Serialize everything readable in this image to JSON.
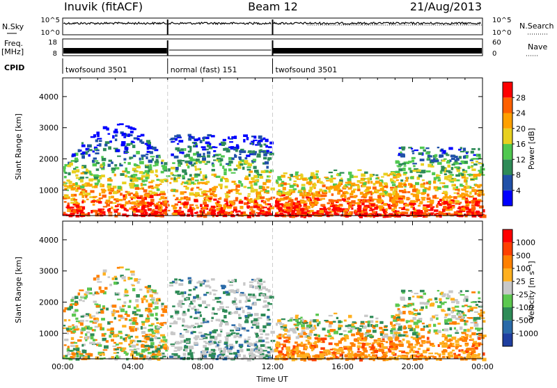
{
  "header": {
    "station": "Inuvik (fitACF)",
    "beam": "Beam 12",
    "date": "21/Aug/2013"
  },
  "noise_panel": {
    "left_label": "N.Sky",
    "right_label": "N.Search",
    "left_ticks": [
      "10^5",
      "10^0"
    ],
    "right_ticks": [
      "10^5",
      "10^0"
    ]
  },
  "freq_panel": {
    "left_label_line1": "Freq.",
    "left_label_line2": "[MHz]",
    "right_label": "Nave",
    "left_ticks": [
      "18",
      "8"
    ],
    "right_ticks": [
      "60",
      "0"
    ]
  },
  "cpid_panel": {
    "label": "CPID",
    "segments": [
      {
        "label": "twofsound 3501",
        "start_hour": 0,
        "end_hour": 6
      },
      {
        "label": "normal (fast) 151",
        "start_hour": 6,
        "end_hour": 12
      },
      {
        "label": "twofsound 3501",
        "start_hour": 12,
        "end_hour": 24
      }
    ]
  },
  "chart_data": [
    {
      "type": "heatmap",
      "name": "power",
      "ylabel": "Slant Range [km]",
      "y_ticks": [
        "4000",
        "3000",
        "2000",
        "1000"
      ],
      "y_tick_values": [
        4000,
        3000,
        2000,
        1000
      ],
      "ylim": [
        180,
        4600
      ],
      "xlim": [
        0,
        24
      ],
      "colorbar_label": "Power [dB]",
      "colorbar_ticks": [
        "28",
        "24",
        "20",
        "16",
        "12",
        "8",
        "4"
      ],
      "colorbar_colors": [
        "#0000ff",
        "#2050a8",
        "#2e8b57",
        "#50c850",
        "#e8d020",
        "#ffa000",
        "#ff6000",
        "#ff0000"
      ],
      "data_gaps_hours": [
        6,
        12
      ]
    },
    {
      "type": "heatmap",
      "name": "velocity",
      "ylabel": "Slant Range [km]",
      "y_ticks": [
        "4000",
        "3000",
        "2000",
        "1000"
      ],
      "y_tick_values": [
        4000,
        3000,
        2000,
        1000
      ],
      "ylim": [
        180,
        4600
      ],
      "xlim": [
        0,
        24
      ],
      "xlabel": "Time UT",
      "x_ticks": [
        "00:00",
        "04:00",
        "08:00",
        "12:00",
        "16:00",
        "20:00",
        "00:00"
      ],
      "x_tick_hours": [
        0,
        4,
        8,
        12,
        16,
        20,
        24
      ],
      "colorbar_label": "Velocity [m s⁻¹]",
      "colorbar_ticks": [
        "1000",
        "500",
        "100",
        "25",
        "-25",
        "-100",
        "-500",
        "-1000"
      ],
      "colorbar_colors": [
        "#1f3fa0",
        "#2a6aa8",
        "#2e8b57",
        "#5cc850",
        "#c8c8c8",
        "#ffb020",
        "#ff8000",
        "#ff4000",
        "#ff0000"
      ]
    }
  ]
}
